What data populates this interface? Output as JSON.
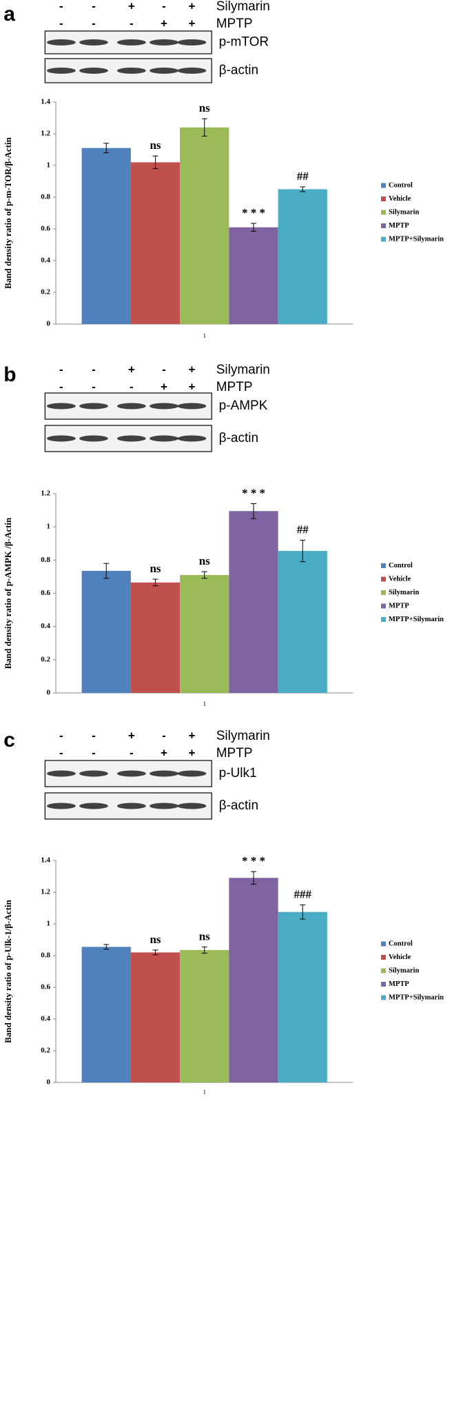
{
  "chart_data": [
    {
      "type": "bar",
      "panel": "a",
      "treatments": [
        {
          "name": "Silymarin",
          "signs": [
            "-",
            "-",
            "+",
            "-",
            "+"
          ]
        },
        {
          "name": "MPTP",
          "signs": [
            "-",
            "-",
            "-",
            "+",
            "+"
          ]
        }
      ],
      "blots": [
        "p-mTOR",
        "β-actin"
      ],
      "y_label": "Band density ratio of p-m-TOR/β-Actin",
      "categories": [
        "1"
      ],
      "ylim": [
        0,
        1.4
      ],
      "yticks": [
        0,
        0.2,
        0.4,
        0.6,
        0.8,
        1,
        1.2,
        1.4
      ],
      "series": [
        {
          "name": "Control",
          "color": "#4f81bd",
          "values": [
            1.11
          ],
          "errors": [
            0.03
          ]
        },
        {
          "name": "Vehicle",
          "color": "#c0504d",
          "values": [
            1.02
          ],
          "errors": [
            0.04
          ],
          "annotation": "ns"
        },
        {
          "name": "Silymarin",
          "color": "#9bbb59",
          "values": [
            1.24
          ],
          "errors": [
            0.055
          ],
          "annotation": "ns"
        },
        {
          "name": "MPTP",
          "color": "#8064a2",
          "values": [
            0.61
          ],
          "errors": [
            0.025
          ],
          "annotation": "* * *"
        },
        {
          "name": "MPTP+Silymarin",
          "color": "#4bacc6",
          "values": [
            0.85
          ],
          "errors": [
            0.015
          ],
          "annotation": "##"
        }
      ]
    },
    {
      "type": "bar",
      "panel": "b",
      "treatments": [
        {
          "name": "Silymarin",
          "signs": [
            "-",
            "-",
            "+",
            "-",
            "+"
          ]
        },
        {
          "name": "MPTP",
          "signs": [
            "-",
            "-",
            "-",
            "+",
            "+"
          ]
        }
      ],
      "blots": [
        "p-AMPK",
        "β-actin"
      ],
      "y_label": "Band density ratio of p-AMPK /β-Actin",
      "categories": [
        "1"
      ],
      "ylim": [
        0,
        1.2
      ],
      "yticks": [
        0,
        0.2,
        0.4,
        0.6,
        0.8,
        1,
        1.2
      ],
      "series": [
        {
          "name": "Control",
          "color": "#4f81bd",
          "values": [
            0.735
          ],
          "errors": [
            0.045
          ]
        },
        {
          "name": "Vehicle",
          "color": "#c0504d",
          "values": [
            0.665
          ],
          "errors": [
            0.02
          ],
          "annotation": "ns"
        },
        {
          "name": "Silymarin",
          "color": "#9bbb59",
          "values": [
            0.71
          ],
          "errors": [
            0.02
          ],
          "annotation": "ns"
        },
        {
          "name": "MPTP",
          "color": "#8064a2",
          "values": [
            1.095
          ],
          "errors": [
            0.045
          ],
          "annotation": "* * *"
        },
        {
          "name": "MPTP+Silymarin",
          "color": "#4bacc6",
          "values": [
            0.855
          ],
          "errors": [
            0.065
          ],
          "annotation": "##"
        }
      ]
    },
    {
      "type": "bar",
      "panel": "c",
      "treatments": [
        {
          "name": "Silymarin",
          "signs": [
            "-",
            "-",
            "+",
            "-",
            "+"
          ]
        },
        {
          "name": "MPTP",
          "signs": [
            "-",
            "-",
            "-",
            "+",
            "+"
          ]
        }
      ],
      "blots": [
        "p-Ulk1",
        "β-actin"
      ],
      "y_label": "Band density ratio of p-Ulk-1/β-Actin",
      "categories": [
        "1"
      ],
      "ylim": [
        0,
        1.4
      ],
      "yticks": [
        0,
        0.2,
        0.4,
        0.6,
        0.8,
        1,
        1.2,
        1.4
      ],
      "series": [
        {
          "name": "Control",
          "color": "#4f81bd",
          "values": [
            0.855
          ],
          "errors": [
            0.015
          ]
        },
        {
          "name": "Vehicle",
          "color": "#c0504d",
          "values": [
            0.82
          ],
          "errors": [
            0.015
          ],
          "annotation": "ns"
        },
        {
          "name": "Silymarin",
          "color": "#9bbb59",
          "values": [
            0.835
          ],
          "errors": [
            0.02
          ],
          "annotation": "ns"
        },
        {
          "name": "MPTP",
          "color": "#8064a2",
          "values": [
            1.29
          ],
          "errors": [
            0.04
          ],
          "annotation": "* * *"
        },
        {
          "name": "MPTP+Silymarin",
          "color": "#4bacc6",
          "values": [
            1.075
          ],
          "errors": [
            0.045
          ],
          "annotation": "###"
        }
      ]
    }
  ]
}
